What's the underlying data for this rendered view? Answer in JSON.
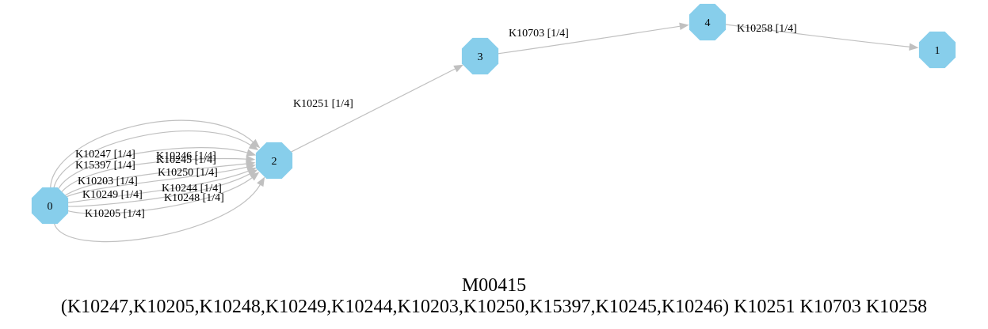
{
  "colors": {
    "node_fill": "#87ceeb",
    "edge": "#c0c0c0",
    "text": "#000000",
    "background": "#ffffff"
  },
  "nodes": [
    {
      "id": "0",
      "label": "0"
    },
    {
      "id": "2",
      "label": "2"
    },
    {
      "id": "3",
      "label": "3"
    },
    {
      "id": "4",
      "label": "4"
    },
    {
      "id": "1",
      "label": "1"
    }
  ],
  "edges": [
    {
      "from": "0",
      "to": "2",
      "label": "K10247 [1/4]"
    },
    {
      "from": "0",
      "to": "2",
      "label": "K10246 [1/4]"
    },
    {
      "from": "0",
      "to": "2",
      "label": "K10245 [1/4]"
    },
    {
      "from": "0",
      "to": "2",
      "label": "K15397 [1/4]"
    },
    {
      "from": "0",
      "to": "2",
      "label": "K10250 [1/4]"
    },
    {
      "from": "0",
      "to": "2",
      "label": "K10203 [1/4]"
    },
    {
      "from": "0",
      "to": "2",
      "label": "K10244 [1/4]"
    },
    {
      "from": "0",
      "to": "2",
      "label": "K10249 [1/4]"
    },
    {
      "from": "0",
      "to": "2",
      "label": "K10248 [1/4]"
    },
    {
      "from": "0",
      "to": "2",
      "label": "K10205 [1/4]"
    },
    {
      "from": "2",
      "to": "3",
      "label": "K10251 [1/4]"
    },
    {
      "from": "3",
      "to": "4",
      "label": "K10703 [1/4]"
    },
    {
      "from": "4",
      "to": "1",
      "label": "K10258 [1/4]"
    }
  ],
  "caption": {
    "title": "M00415",
    "definition": "(K10247,K10205,K10248,K10249,K10244,K10203,K10250,K15397,K10245,K10246) K10251 K10703 K10258"
  }
}
